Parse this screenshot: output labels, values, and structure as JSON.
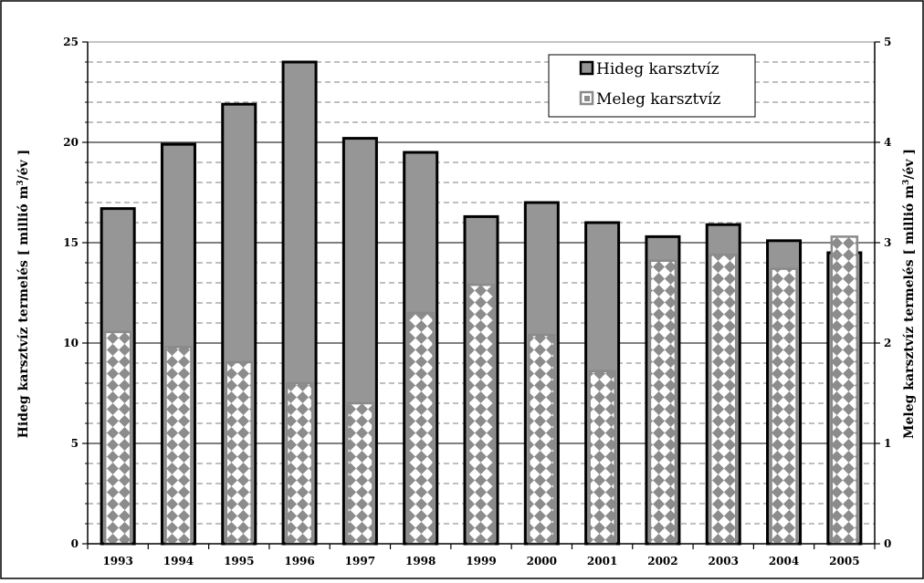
{
  "chart_data": {
    "type": "bar",
    "categories": [
      "1993",
      "1994",
      "1995",
      "1996",
      "1997",
      "1998",
      "1999",
      "2000",
      "2001",
      "2002",
      "2003",
      "2004",
      "2005"
    ],
    "series": [
      {
        "name": "Hideg karsztvíz",
        "axis": "left",
        "color": "#969696",
        "values": [
          16.7,
          19.9,
          21.9,
          24.0,
          20.2,
          19.5,
          16.3,
          17.0,
          16.0,
          15.3,
          15.9,
          15.1,
          14.5
        ]
      },
      {
        "name": "Meleg karsztvíz",
        "axis": "right",
        "pattern": "diamond-checker",
        "values": [
          2.11,
          1.96,
          1.81,
          1.6,
          1.4,
          2.3,
          2.58,
          2.08,
          1.72,
          2.82,
          2.88,
          2.74,
          3.06
        ]
      }
    ],
    "ylabel_left": {
      "main": "Hideg karsztvíz termelés [ millió m",
      "sup": "3",
      "tail": "/év ]"
    },
    "ylabel_right": {
      "main": "Meleg karsztvíz termelés [ millió m",
      "sup": "3",
      "tail": "/év ]"
    },
    "ylim_left": [
      0,
      25
    ],
    "yticks_left": [
      0,
      5,
      10,
      15,
      20,
      25
    ],
    "ylim_right": [
      0,
      5
    ],
    "yticks_right": [
      0,
      1,
      2,
      3,
      4,
      5
    ],
    "grid": {
      "major": true,
      "minor_dashed": true
    },
    "legend": {
      "placement": "top-right-inside",
      "entries": [
        "Hideg karsztvíz",
        "Meleg karsztvíz"
      ]
    }
  }
}
